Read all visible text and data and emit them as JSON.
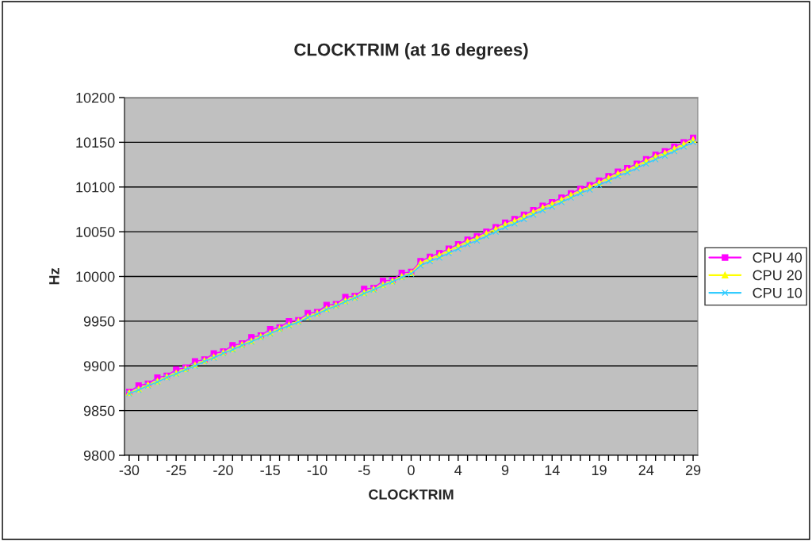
{
  "chart_data": {
    "type": "line",
    "title": "CLOCKTRIM (at 16 degrees)",
    "xlabel": "CLOCKTRIM",
    "ylabel": "Hz",
    "categories": [
      "-30",
      null,
      null,
      null,
      null,
      "-25",
      null,
      null,
      null,
      null,
      "-20",
      null,
      null,
      null,
      null,
      "-15",
      null,
      null,
      null,
      null,
      "-10",
      null,
      null,
      null,
      null,
      "-5",
      null,
      null,
      null,
      null,
      "0",
      null,
      null,
      null,
      null,
      "4",
      null,
      null,
      null,
      null,
      "9",
      null,
      null,
      null,
      null,
      "14",
      null,
      null,
      null,
      null,
      "19",
      null,
      null,
      null,
      null,
      "24",
      null,
      null,
      null,
      null,
      "29"
    ],
    "series": [
      {
        "name": "CPU 40",
        "color": "#ff00ff",
        "marker": "square",
        "values": [
          9871,
          9878,
          9880,
          9887,
          9889,
          9896,
          9898,
          9905,
          9907,
          9914,
          9916,
          9923,
          9925,
          9932,
          9934,
          9941,
          9943,
          9950,
          9951,
          9959,
          9960,
          9968,
          9969,
          9977,
          9978,
          9986,
          9987,
          9995,
          9996,
          10004,
          10005,
          10017,
          10022,
          10026,
          10031,
          10036,
          10041,
          10045,
          10050,
          10055,
          10060,
          10064,
          10069,
          10074,
          10079,
          10083,
          10088,
          10093,
          10098,
          10102,
          10107,
          10112,
          10117,
          10121,
          10126,
          10131,
          10136,
          10140,
          10145,
          10150,
          10155
        ]
      },
      {
        "name": "CPU 20",
        "color": "#ffff00",
        "marker": "triangle",
        "values": [
          9870,
          9874,
          9879,
          9883,
          9888,
          9892,
          9897,
          9901,
          9906,
          9910,
          9915,
          9919,
          9924,
          9928,
          9933,
          9937,
          9942,
          9946,
          9950,
          9955,
          9959,
          9964,
          9968,
          9973,
          9977,
          9982,
          9986,
          9991,
          9995,
          10000,
          10004,
          10015,
          10020,
          10024,
          10029,
          10034,
          10039,
          10043,
          10048,
          10053,
          10058,
          10062,
          10067,
          10072,
          10077,
          10081,
          10086,
          10091,
          10096,
          10100,
          10105,
          10110,
          10115,
          10119,
          10124,
          10129,
          10134,
          10138,
          10143,
          10148,
          10153
        ]
      },
      {
        "name": "CPU 10",
        "color": "#33ccff",
        "marker": "cross",
        "values": [
          9869,
          9873,
          9878,
          9882,
          9887,
          9891,
          9896,
          9900,
          9905,
          9909,
          9914,
          9918,
          9923,
          9927,
          9932,
          9936,
          9941,
          9945,
          9949,
          9954,
          9958,
          9963,
          9967,
          9972,
          9976,
          9981,
          9985,
          9990,
          9994,
          9999,
          10003,
          10012,
          10017,
          10021,
          10026,
          10031,
          10036,
          10040,
          10045,
          10050,
          10055,
          10059,
          10064,
          10069,
          10074,
          10078,
          10083,
          10088,
          10093,
          10097,
          10102,
          10107,
          10112,
          10116,
          10121,
          10126,
          10131,
          10135,
          10140,
          10145,
          10150
        ]
      }
    ],
    "ylim": [
      9800,
      10200
    ],
    "yticks": [
      9800,
      9850,
      9900,
      9950,
      10000,
      10050,
      10100,
      10150,
      10200
    ],
    "grid": "y",
    "legend": "right",
    "line_style": "solid"
  }
}
